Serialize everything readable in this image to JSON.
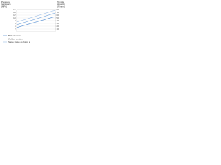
{
  "chart_data": {
    "type": "line",
    "ylabel": [
      "Pressure",
      "resistance",
      "(MPa)"
    ],
    "y2label": [
      "Tensile",
      "strength",
      "(N/mm²)"
    ],
    "categories": [
      null,
      null
    ],
    "series": [
      {
        "name": "Bolted version",
        "color": "#6f9fd8",
        "values": [
          3,
          11
        ]
      },
      {
        "name": "Welded version",
        "color": "#8fb6e3",
        "values": [
          5,
          13.5
        ]
      },
      {
        "name": "Same status as figure 2",
        "color": "#b3cdec",
        "values": [
          7,
          15.5
        ]
      }
    ],
    "ylim": [
      0,
      16
    ],
    "yticks": [
      2,
      4,
      6,
      8,
      10,
      12,
      14,
      16
    ],
    "y2lim": [
      0,
      80
    ],
    "y2ticks": [
      10,
      20,
      30,
      40,
      50,
      60,
      70,
      80
    ],
    "grid": true
  }
}
